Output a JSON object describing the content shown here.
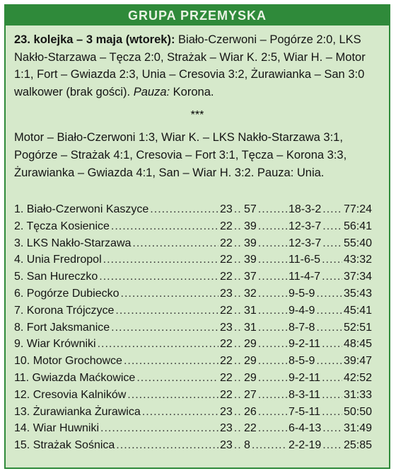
{
  "header": {
    "title": "GRUPA PRZEMYSKA"
  },
  "round": {
    "title": "23. kolejka – 3 maja (wtorek):",
    "results_text": " Biało-Czerwoni – Pogórze 2:0, LKS Nakło-Starzawa – Tęcza 2:0, Strażak – Wiar K. 2:5, Wiar H. – Motor 1:1, Fort – Gwiazda 2:3, Unia – Cresovia 3:2, Żurawianka – San 3:0 walkower (brak gości). ",
    "pause_label": "Pauza:",
    "pause_team": " Korona."
  },
  "separator": "***",
  "next_round": {
    "fixtures_text": "Motor – Biało-Czerwoni 1:3, Wiar K. – LKS Nakło-Starzawa 3:1, Pogórze – Strażak 4:1, Cresovia – Fort 3:1, Tęcza – Korona 3:3, Żurawianka – Gwiazda 4:1, San – Wiar H. 3:2. ",
    "pause_label": "Pauza:",
    "pause_team": " Unia."
  },
  "standings": [
    {
      "name": "1. Biało-Czerwoni Kaszyce",
      "matches": "23",
      "points": "57",
      "wdl": "18-3-2",
      "goals": "77:24"
    },
    {
      "name": "2. Tęcza Kosienice",
      "matches": "22",
      "points": "39",
      "wdl": "12-3-7",
      "goals": "56:41"
    },
    {
      "name": "3. LKS Nakło-Starzawa",
      "matches": "22",
      "points": "39",
      "wdl": "12-3-7",
      "goals": "55:40"
    },
    {
      "name": "4. Unia Fredropol",
      "matches": "22",
      "points": "39",
      "wdl": "11-6-5",
      "goals": "43:32"
    },
    {
      "name": "5. San Hureczko",
      "matches": "22",
      "points": "37",
      "wdl": "11-4-7",
      "goals": "37:34"
    },
    {
      "name": "6. Pogórze Dubiecko",
      "matches": "23",
      "points": "32",
      "wdl": "9-5-9",
      "goals": "35:43"
    },
    {
      "name": "7. Korona Trójczyce",
      "matches": "22",
      "points": "31",
      "wdl": "9-4-9",
      "goals": "45:41"
    },
    {
      "name": "8. Fort Jaksmanice",
      "matches": "23",
      "points": "31",
      "wdl": "8-7-8",
      "goals": "52:51"
    },
    {
      "name": "9. Wiar Krówniki",
      "matches": "22",
      "points": "29",
      "wdl": "9-2-11",
      "goals": "48:45"
    },
    {
      "name": "10. Motor Grochowce",
      "matches": "22",
      "points": "29",
      "wdl": "8-5-9",
      "goals": "39:47"
    },
    {
      "name": "11. Gwiazda Maćkowice",
      "matches": "22",
      "points": "29",
      "wdl": "9-2-11",
      "goals": "42:52"
    },
    {
      "name": "12. Cresovia Kalników",
      "matches": "22",
      "points": "27",
      "wdl": "8-3-11",
      "goals": "31:33"
    },
    {
      "name": "13. Żurawianka Żurawica",
      "matches": "23",
      "points": "26",
      "wdl": "7-5-11",
      "goals": "50:50"
    },
    {
      "name": "14. Wiar Huwniki",
      "matches": "23",
      "points": "22",
      "wdl": "6-4-13",
      "goals": "31:49"
    },
    {
      "name": "15. Strażak Sośnica",
      "matches": "23",
      "points": "8",
      "wdl": "2-2-19",
      "goals": "25:85"
    }
  ]
}
